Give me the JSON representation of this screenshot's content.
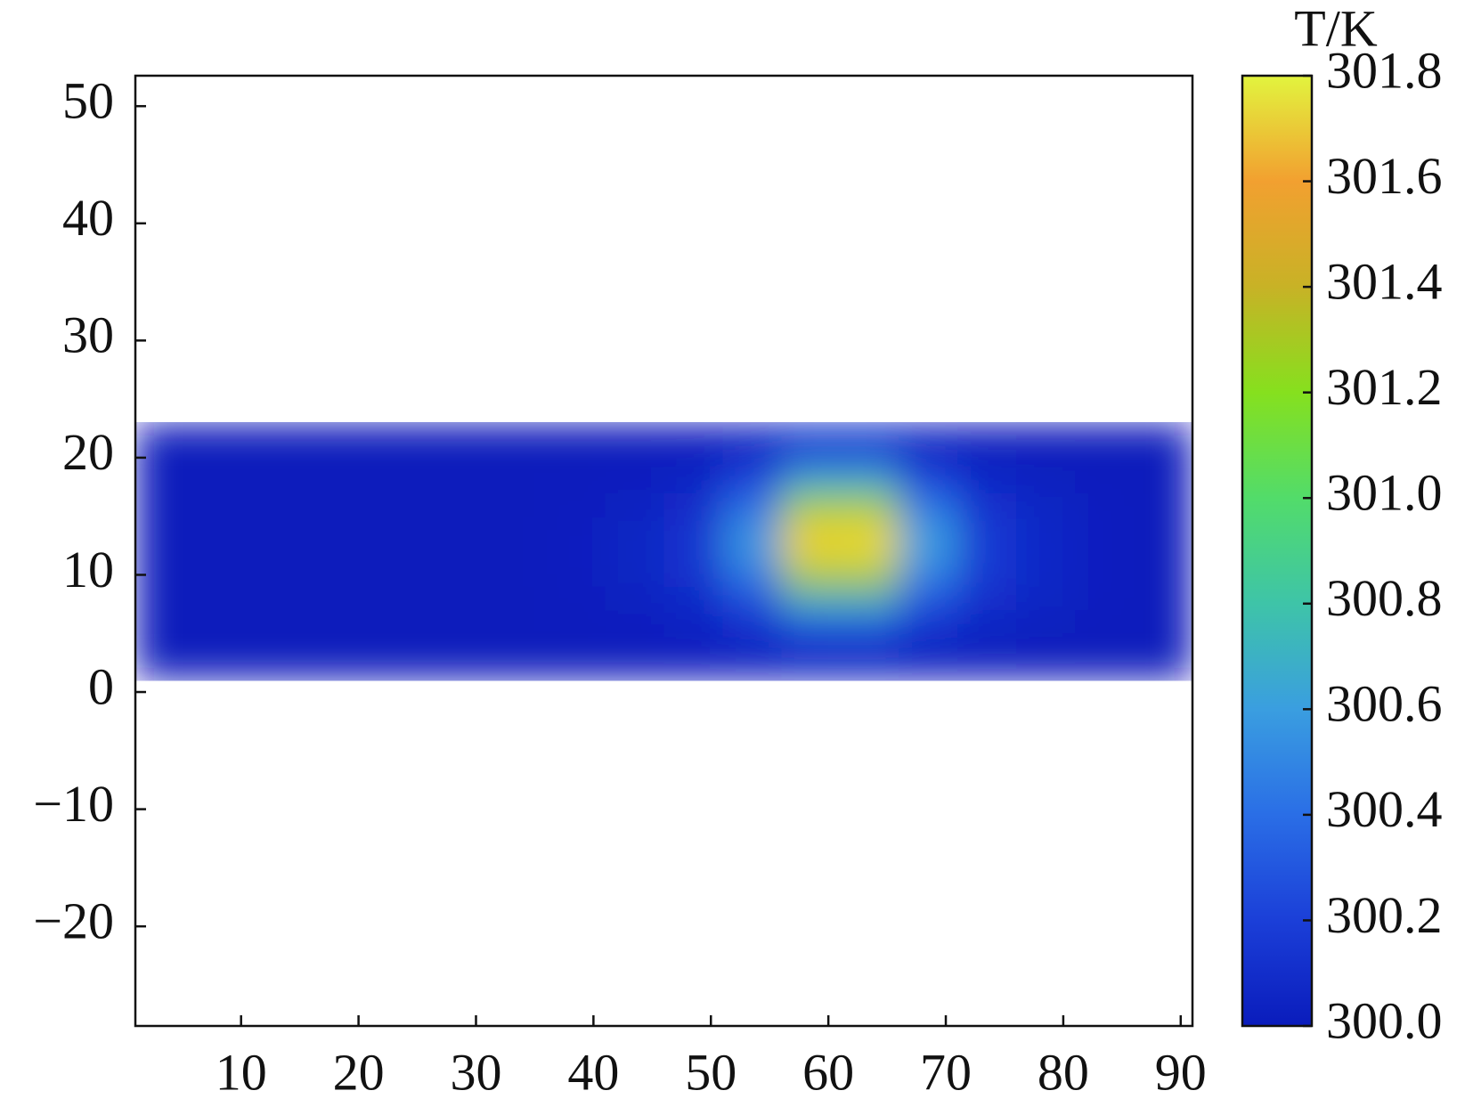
{
  "chart_data": {
    "type": "heatmap",
    "colorbar_title": "T/K",
    "x": [
      3.5,
      8.5,
      13.5,
      18.5,
      23.5,
      28.5,
      33.5,
      38.5,
      43.5,
      48.5,
      53.5,
      58.5,
      63.5,
      68.5,
      73.5,
      78.5,
      83.5,
      88.5
    ],
    "y": [
      2,
      4,
      6,
      8,
      10,
      12,
      14,
      16,
      18,
      20,
      22
    ],
    "z": [
      [
        300.0,
        300.0,
        300.0,
        300.0,
        300.0,
        300.0,
        300.0,
        300.0,
        300.0,
        300.0,
        300.0
      ],
      [
        300.0,
        300.0,
        300.0,
        300.0,
        300.0,
        300.0,
        300.0,
        300.0,
        300.0,
        300.0,
        300.0
      ],
      [
        300.0,
        300.0,
        300.0,
        300.0,
        300.0,
        300.0,
        300.0,
        300.0,
        300.0,
        300.0,
        300.0
      ],
      [
        300.0,
        300.0,
        300.0,
        300.0,
        300.0,
        300.0,
        300.0,
        300.0,
        300.0,
        300.0,
        300.0
      ],
      [
        300.0,
        300.0,
        300.0,
        300.0,
        300.0,
        300.0,
        300.0,
        300.0,
        300.0,
        300.0,
        300.0
      ],
      [
        300.0,
        300.0,
        300.0,
        300.0,
        300.0,
        300.0,
        300.0,
        300.0,
        300.0,
        300.0,
        300.0
      ],
      [
        300.0,
        300.0,
        300.0,
        300.0,
        300.0,
        300.0,
        300.0,
        300.0,
        300.0,
        300.0,
        300.0
      ],
      [
        300.0,
        300.0,
        300.01,
        300.01,
        300.02,
        300.02,
        300.02,
        300.01,
        300.01,
        300.0,
        300.0
      ],
      [
        300.0,
        300.01,
        300.02,
        300.03,
        300.05,
        300.05,
        300.05,
        300.03,
        300.02,
        300.01,
        300.0
      ],
      [
        300.01,
        300.02,
        300.04,
        300.08,
        300.12,
        300.14,
        300.12,
        300.09,
        300.05,
        300.02,
        300.01
      ],
      [
        300.01,
        300.06,
        300.13,
        300.27,
        300.44,
        300.57,
        300.54,
        300.39,
        300.22,
        300.09,
        300.03
      ],
      [
        300.03,
        300.11,
        300.31,
        300.74,
        301.31,
        301.73,
        301.7,
        301.24,
        300.66,
        300.26,
        300.08
      ],
      [
        300.03,
        300.11,
        300.32,
        300.75,
        301.32,
        301.75,
        301.71,
        301.25,
        300.67,
        300.26,
        300.08
      ],
      [
        300.01,
        300.06,
        300.14,
        300.3,
        300.48,
        300.6,
        300.58,
        300.42,
        300.23,
        300.09,
        300.03
      ],
      [
        300.01,
        300.03,
        300.06,
        300.11,
        300.16,
        300.17,
        300.16,
        300.12,
        300.07,
        300.03,
        300.01
      ],
      [
        300.0,
        300.01,
        300.03,
        300.05,
        300.07,
        300.08,
        300.07,
        300.05,
        300.03,
        300.01,
        300.0
      ],
      [
        300.0,
        300.0,
        300.01,
        300.02,
        300.02,
        300.03,
        300.02,
        300.02,
        300.01,
        300.0,
        300.0
      ],
      [
        300.0,
        300.0,
        300.0,
        300.0,
        300.0,
        300.0,
        300.0,
        300.0,
        300.0,
        300.0,
        300.0
      ]
    ],
    "colors": [
      "#0a1cbc",
      "#1b3fd8",
      "#2a6ee6",
      "#3a9ee0",
      "#3ec4a8",
      "#52dc6a",
      "#86e01e",
      "#c8b226",
      "#f2a030",
      "#e2f43e"
    ],
    "xlim": [
      1,
      91
    ],
    "xticks": [
      10,
      20,
      30,
      40,
      50,
      60,
      70,
      80,
      90
    ],
    "ylim": [
      -28.5,
      52.6
    ],
    "yticks": [
      {
        "value": -20,
        "label": "−20"
      },
      {
        "value": -10,
        "label": "−10"
      },
      0,
      10,
      20,
      30,
      40,
      50
    ],
    "zlim": [
      300.0,
      301.8
    ],
    "zticks": [
      {
        "value": 300.0,
        "label": "300.0"
      },
      300.2,
      300.4,
      300.6,
      300.8,
      {
        "value": 301.0,
        "label": "301.0"
      },
      301.2,
      301.4,
      301.6,
      301.8
    ]
  }
}
